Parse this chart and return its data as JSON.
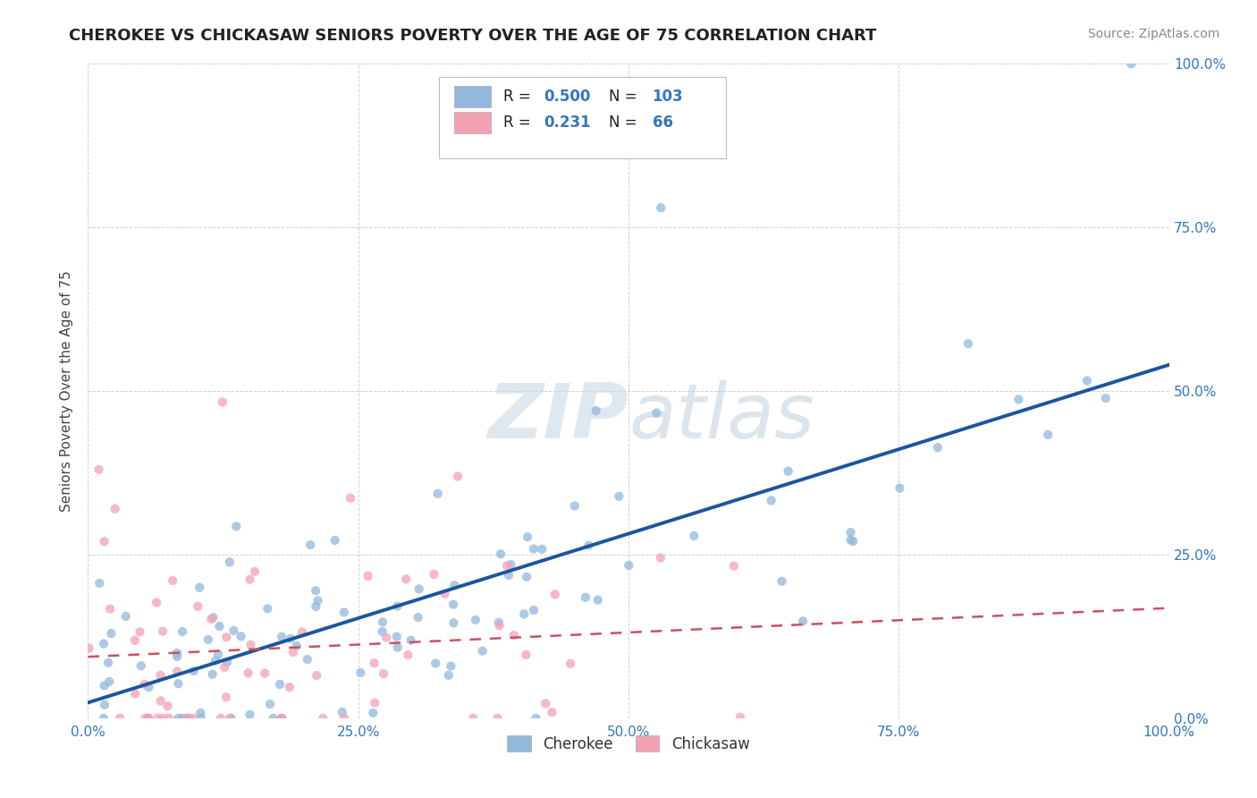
{
  "title": "CHEROKEE VS CHICKASAW SENIORS POVERTY OVER THE AGE OF 75 CORRELATION CHART",
  "source": "Source: ZipAtlas.com",
  "ylabel": "Seniors Poverty Over the Age of 75",
  "xlim": [
    0.0,
    1.0
  ],
  "ylim": [
    0.0,
    1.0
  ],
  "xticks": [
    0.0,
    0.25,
    0.5,
    0.75,
    1.0
  ],
  "xticklabels": [
    "0.0%",
    "25.0%",
    "50.0%",
    "75.0%",
    "100.0%"
  ],
  "yticks": [
    0.0,
    0.25,
    0.5,
    0.75,
    1.0
  ],
  "yticklabels": [
    "0.0%",
    "25.0%",
    "50.0%",
    "75.0%",
    "100.0%"
  ],
  "cherokee_color": "#92b8dc",
  "chickasaw_color": "#f4a0b5",
  "cherokee_line_color": "#1a56a0",
  "chickasaw_line_color": "#cc5060",
  "watermark_color": "#d0dce8",
  "background_color": "#ffffff",
  "grid_color": "#d0d0d0",
  "title_color": "#222222",
  "title_fontsize": 13,
  "axis_label_color": "#444444",
  "tick_color": "#3377bb",
  "legend_num_color": "#3377bb",
  "legend_label_color": "#222222"
}
